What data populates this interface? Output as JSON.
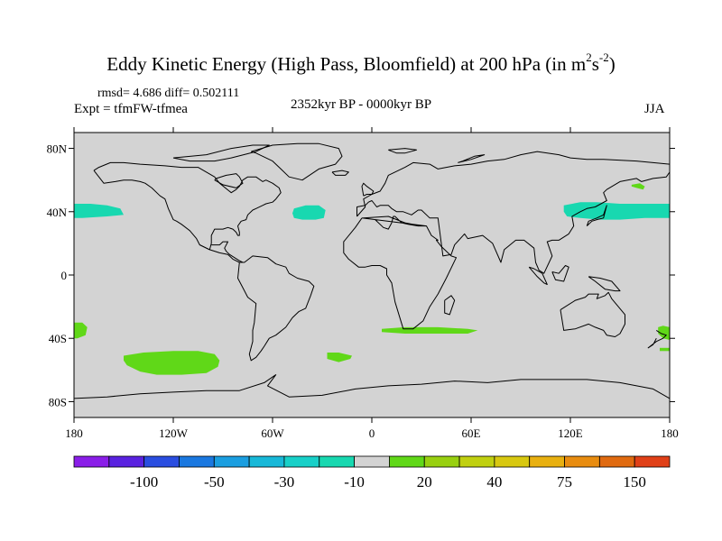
{
  "title": {
    "main": "Eddy Kinetic Energy (High Pass, Bloomfield) at 200 hPa (in m",
    "sup1": "2",
    "mid": "s",
    "sup2": "-2",
    "close": ")"
  },
  "stats": "rmsd= 4.686 diff= 0.502111",
  "experiment": "Expt = tfmFW-tfmea",
  "period": "2352kyr BP - 0000kyr BP",
  "season": "JJA",
  "map": {
    "ocean_land_color": "#d3d3d3",
    "coast_color": "#000000",
    "lat_ticks": [
      {
        "label": "80N",
        "lat": 80
      },
      {
        "label": "40N",
        "lat": 40
      },
      {
        "label": "0",
        "lat": 0
      },
      {
        "label": "40S",
        "lat": -40
      },
      {
        "label": "80S",
        "lat": -80
      }
    ],
    "lon_ticks": [
      {
        "label": "180",
        "lon": -180
      },
      {
        "label": "120W",
        "lon": -120
      },
      {
        "label": "60W",
        "lon": -60
      },
      {
        "label": "0",
        "lon": 0
      },
      {
        "label": "60E",
        "lon": 60
      },
      {
        "label": "120E",
        "lon": 120
      },
      {
        "label": "180",
        "lon": 180
      }
    ]
  },
  "colorbar": {
    "colors": [
      "#8a1ee8",
      "#5a22e0",
      "#2a4ee0",
      "#1a78e0",
      "#1a9ee0",
      "#18b8d8",
      "#18d0c8",
      "#18d8b0",
      "#d3d3d3",
      "#60d818",
      "#98d010",
      "#c0d010",
      "#d8c810",
      "#e8b010",
      "#e88c10",
      "#e06a10",
      "#e04018"
    ],
    "labels": [
      {
        "text": "-100",
        "after": 2
      },
      {
        "text": "-50",
        "after": 4
      },
      {
        "text": "-30",
        "after": 6
      },
      {
        "text": "-10",
        "after": 8
      },
      {
        "text": "20",
        "after": 10
      },
      {
        "text": "40",
        "after": 12
      },
      {
        "text": "75",
        "after": 14
      },
      {
        "text": "150",
        "after": 16
      }
    ]
  },
  "anomalies": [
    {
      "name": "north-pacific-east-positive-anomaly",
      "sign": "negative",
      "color": "#18d8b0",
      "lon": [
        -180,
        -170,
        -160,
        -152,
        -150,
        -160,
        -175,
        -180
      ],
      "lat": [
        45,
        45,
        44,
        42,
        38,
        37,
        36,
        36
      ]
    },
    {
      "name": "north-atlantic-anomaly",
      "sign": "negative",
      "color": "#18d8b0",
      "lon": [
        -47,
        -40,
        -32,
        -28,
        -29,
        -34,
        -42,
        -47,
        -48
      ],
      "lat": [
        42,
        44,
        44,
        41,
        36,
        35,
        35,
        36,
        39
      ]
    },
    {
      "name": "north-pacific-west-anomaly",
      "sign": "negative",
      "color": "#18d8b0",
      "lon": [
        116,
        126,
        136,
        150,
        165,
        180,
        180,
        165,
        150,
        138,
        126,
        118,
        116
      ],
      "lat": [
        44,
        46,
        46,
        45,
        45,
        45,
        36,
        36,
        35,
        35,
        36,
        37,
        40
      ]
    },
    {
      "name": "kamchatka-anomaly",
      "sign": "positive",
      "color": "#60d818",
      "lon": [
        157,
        162,
        165,
        164,
        160,
        157
      ],
      "lat": [
        57,
        58,
        56,
        54,
        55,
        56
      ]
    },
    {
      "name": "south-pacific-far-west-anomaly",
      "sign": "positive",
      "color": "#60d818",
      "lon": [
        -180,
        -175,
        -172,
        -173,
        -178,
        -180
      ],
      "lat": [
        -30,
        -30,
        -33,
        -38,
        -40,
        -40
      ]
    },
    {
      "name": "south-pacific-anomaly",
      "sign": "positive",
      "color": "#60d818",
      "lon": [
        -150,
        -138,
        -120,
        -105,
        -95,
        -92,
        -93,
        -100,
        -115,
        -130,
        -140,
        -148,
        -150
      ],
      "lat": [
        -51,
        -49,
        -48,
        -48,
        -50,
        -54,
        -58,
        -62,
        -63,
        -63,
        -61,
        -57,
        -54
      ]
    },
    {
      "name": "south-atlantic-anomaly",
      "sign": "positive",
      "color": "#60d818",
      "lon": [
        -27,
        -20,
        -12,
        -13,
        -20,
        -27
      ],
      "lat": [
        -49,
        -49,
        -51,
        -53,
        -55,
        -53
      ]
    },
    {
      "name": "southern-indian-anomaly",
      "sign": "positive",
      "color": "#60d818",
      "lon": [
        6,
        20,
        40,
        58,
        64,
        58,
        40,
        20,
        6
      ],
      "lat": [
        -34,
        -33,
        -33,
        -34,
        -35,
        -37,
        -37,
        -37,
        -36
      ]
    },
    {
      "name": "new-zealand-anomaly",
      "sign": "positive",
      "color": "#60d818",
      "lon": [
        173,
        176,
        180,
        180,
        176,
        173
      ],
      "lat": [
        -33,
        -32,
        -33,
        -41,
        -40,
        -37
      ]
    },
    {
      "name": "new-zealand-south-anomaly",
      "sign": "positive",
      "color": "#60d818",
      "lon": [
        174,
        180,
        180,
        174
      ],
      "lat": [
        -46,
        -46,
        -48,
        -48
      ]
    }
  ],
  "coastlines": [
    {
      "name": "north-america-coastline",
      "lon": [
        -168,
        -162,
        -155,
        -150,
        -145,
        -140,
        -137,
        -133,
        -128,
        -125,
        -124,
        -123,
        -120,
        -118,
        -115,
        -110,
        -106,
        -104,
        -98,
        -97,
        -97,
        -95,
        -90,
        -87,
        -84,
        -82,
        -81,
        -80,
        -80,
        -81,
        -79,
        -76,
        -75,
        -72,
        -70,
        -66,
        -64,
        -60,
        -58,
        -55,
        -56,
        -60,
        -64,
        -66,
        -70,
        -75,
        -78,
        -80,
        -82,
        -85,
        -92,
        -95,
        -105,
        -115,
        -125,
        -140,
        -150,
        -158,
        -165,
        -168
      ],
      "lat": [
        66,
        58,
        59,
        60,
        60,
        59,
        58,
        55,
        50,
        48,
        45,
        42,
        35,
        34,
        32,
        28,
        23,
        19,
        16,
        20,
        25,
        29,
        29,
        30,
        29,
        27,
        25,
        25,
        27,
        31,
        34,
        35,
        38,
        41,
        42,
        44,
        45,
        46,
        48,
        52,
        55,
        58,
        60,
        59,
        62,
        62,
        60,
        56,
        54,
        52,
        58,
        62,
        68,
        68,
        69,
        70,
        71,
        71,
        68,
        66
      ]
    },
    {
      "name": "central-america-coastline",
      "lon": [
        -104,
        -98,
        -92,
        -87,
        -84,
        -80,
        -78,
        -80,
        -83,
        -86,
        -88,
        -89,
        -87,
        -90,
        -92,
        -97
      ],
      "lat": [
        19,
        16,
        14,
        13,
        10,
        8,
        8,
        9,
        11,
        13,
        15,
        17,
        21,
        21,
        19,
        19
      ]
    },
    {
      "name": "south-america-coastline",
      "lon": [
        -80,
        -77,
        -72,
        -63,
        -58,
        -52,
        -50,
        -45,
        -38,
        -35,
        -37,
        -40,
        -44,
        -48,
        -52,
        -58,
        -62,
        -65,
        -67,
        -70,
        -73,
        -74,
        -72,
        -72,
        -71,
        -70,
        -75,
        -78,
        -81,
        -80
      ],
      "lat": [
        8,
        8,
        12,
        11,
        7,
        5,
        1,
        -2,
        -4,
        -7,
        -13,
        -21,
        -23,
        -27,
        -33,
        -38,
        -40,
        -45,
        -48,
        -52,
        -54,
        -50,
        -42,
        -35,
        -30,
        -18,
        -14,
        -8,
        -2,
        8
      ]
    },
    {
      "name": "greenland-coastline",
      "lon": [
        -73,
        -60,
        -45,
        -32,
        -20,
        -18,
        -22,
        -32,
        -42,
        -50,
        -55,
        -60,
        -70,
        -73
      ],
      "lat": [
        78,
        82,
        83,
        83,
        80,
        75,
        70,
        67,
        60,
        62,
        67,
        72,
        77,
        78
      ]
    },
    {
      "name": "eurasia-coastline",
      "lon": [
        -9,
        -9,
        -4,
        -2,
        0,
        3,
        5,
        10,
        12,
        15,
        19,
        24,
        28,
        30,
        35,
        40,
        43,
        48,
        50,
        56,
        58,
        67,
        73,
        78,
        80,
        87,
        92,
        98,
        99,
        101,
        104,
        109,
        106,
        109,
        113,
        119,
        122,
        121,
        126,
        130,
        135,
        142,
        140,
        142,
        150,
        160,
        163,
        170,
        178,
        180,
        180,
        160,
        140,
        130,
        120,
        113,
        100,
        90,
        80,
        70,
        60,
        50,
        40,
        35,
        25,
        20,
        10,
        8,
        5,
        0,
        -5,
        -4,
        -9
      ],
      "lat": [
        37,
        43,
        44,
        46,
        47,
        43,
        44,
        44,
        42,
        40,
        40,
        38,
        41,
        41,
        36,
        36,
        12,
        13,
        19,
        26,
        23,
        25,
        20,
        8,
        16,
        22,
        22,
        17,
        8,
        3,
        1,
        12,
        21,
        22,
        22,
        26,
        31,
        37,
        40,
        42,
        43,
        47,
        52,
        54,
        59,
        61,
        59,
        61,
        62,
        65,
        70,
        72,
        73,
        73,
        74,
        76,
        78,
        76,
        73,
        72,
        70,
        69,
        67,
        70,
        71,
        68,
        63,
        58,
        53,
        51,
        48,
        43,
        37
      ]
    },
    {
      "name": "africa-coastline",
      "lon": [
        -6,
        -10,
        -17,
        -17,
        -14,
        -8,
        -4,
        0,
        5,
        9,
        9,
        12,
        14,
        19,
        25,
        31,
        35,
        40,
        45,
        51,
        48,
        42,
        39,
        40,
        36,
        33,
        28,
        22,
        18,
        14,
        13,
        12,
        10,
        7,
        2,
        -5,
        10,
        20,
        30,
        33,
        -6
      ],
      "lat": [
        36,
        30,
        21,
        14,
        10,
        5,
        5,
        6,
        6,
        4,
        0,
        -5,
        -17,
        -34,
        -34,
        -29,
        -20,
        -12,
        -2,
        11,
        12,
        18,
        22,
        22,
        25,
        31,
        31,
        32,
        33,
        37,
        37,
        33,
        29,
        30,
        35,
        36,
        37,
        33,
        31,
        31,
        36
      ]
    },
    {
      "name": "madagascar-coastline",
      "lon": [
        44,
        48,
        50,
        47,
        44,
        44
      ],
      "lat": [
        -16,
        -13,
        -16,
        -25,
        -24,
        -16
      ]
    },
    {
      "name": "australia-coastline",
      "lon": [
        114,
        117,
        123,
        129,
        131,
        137,
        136,
        141,
        143,
        145,
        153,
        153,
        150,
        147,
        142,
        140,
        135,
        131,
        123,
        116,
        114
      ],
      "lat": [
        -22,
        -20,
        -16,
        -14,
        -12,
        -12,
        -15,
        -13,
        -11,
        -15,
        -25,
        -31,
        -37,
        -39,
        -38,
        -35,
        -33,
        -31,
        -34,
        -35,
        -22
      ]
    },
    {
      "name": "antarctica-coastline",
      "lon": [
        -180,
        -160,
        -140,
        -120,
        -100,
        -80,
        -65,
        -58,
        -63,
        -50,
        -30,
        -10,
        10,
        30,
        50,
        70,
        90,
        110,
        130,
        150,
        170,
        180
      ],
      "lat": [
        -78,
        -77,
        -75,
        -74,
        -73,
        -73,
        -68,
        -63,
        -70,
        -77,
        -76,
        -72,
        -70,
        -69,
        -67,
        -68,
        -66,
        -66,
        -66,
        -68,
        -72,
        -78
      ]
    },
    {
      "name": "uk-coastline",
      "lon": [
        -5,
        -3,
        0,
        1,
        -3,
        -5,
        -6,
        -5
      ],
      "lat": [
        50,
        51,
        51,
        53,
        56,
        58,
        56,
        50
      ]
    },
    {
      "name": "japan-coastline",
      "lon": [
        130,
        133,
        136,
        140,
        141,
        142,
        140,
        136,
        131,
        130
      ],
      "lat": [
        31,
        34,
        35,
        36,
        40,
        44,
        38,
        36,
        34,
        31
      ]
    },
    {
      "name": "new-zealand-coastline",
      "lon": [
        172,
        175,
        178,
        176,
        172,
        167,
        170,
        172
      ],
      "lat": [
        -35,
        -37,
        -38,
        -40,
        -42,
        -46,
        -44,
        -40
      ]
    },
    {
      "name": "borneo-coastline",
      "lon": [
        109,
        113,
        117,
        119,
        116,
        111,
        109
      ],
      "lat": [
        2,
        1,
        6,
        5,
        -4,
        -3,
        2
      ]
    },
    {
      "name": "sumatra-coastline",
      "lon": [
        95,
        98,
        103,
        106,
        104,
        100,
        95
      ],
      "lat": [
        5,
        4,
        1,
        -6,
        -5,
        -1,
        5
      ]
    },
    {
      "name": "new-guinea-coastline",
      "lon": [
        131,
        138,
        145,
        150,
        147,
        141,
        135,
        131
      ],
      "lat": [
        -1,
        -2,
        -4,
        -10,
        -10,
        -9,
        -4,
        -1
      ]
    },
    {
      "name": "iceland-coastline",
      "lon": [
        -24,
        -18,
        -14,
        -16,
        -22,
        -24
      ],
      "lat": [
        65,
        66,
        65,
        63,
        63,
        65
      ]
    },
    {
      "name": "svalbard-coastline",
      "lon": [
        10,
        20,
        27,
        20,
        15,
        10
      ],
      "lat": [
        79,
        80,
        79,
        77,
        77,
        79
      ]
    },
    {
      "name": "novaya-zemlya-coastline",
      "lon": [
        52,
        60,
        68,
        62,
        55,
        52
      ],
      "lat": [
        71,
        73,
        76,
        75,
        72,
        71
      ]
    },
    {
      "name": "canadian-arctic-islands-coastline",
      "lon": [
        -120,
        -100,
        -85,
        -72,
        -62,
        -70,
        -85,
        -95,
        -110,
        -120
      ],
      "lat": [
        74,
        76,
        80,
        82,
        82,
        78,
        74,
        72,
        72,
        74
      ]
    },
    {
      "name": "hudson-bay-coastline",
      "lon": [
        -95,
        -90,
        -82,
        -78,
        -80,
        -82,
        -88,
        -94,
        -95
      ],
      "lat": [
        60,
        57,
        55,
        58,
        62,
        64,
        63,
        61,
        60
      ]
    }
  ]
}
